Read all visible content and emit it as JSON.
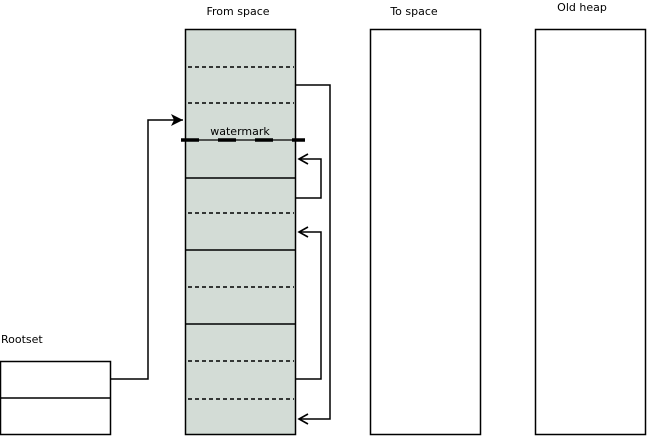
{
  "labels": {
    "from_space": "From space",
    "to_space": "To space",
    "old_heap": "Old heap",
    "rootset": "Rootset",
    "watermark": "watermark"
  },
  "colors": {
    "from_space_fill": "#d3dcd6",
    "stroke": "#000000"
  }
}
